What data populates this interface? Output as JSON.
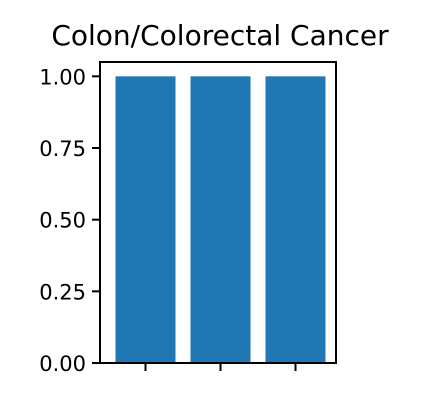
{
  "chart_data": {
    "type": "bar",
    "title": "Colon/Colorectal Cancer",
    "categories": [
      "",
      "",
      ""
    ],
    "values": [
      1.0,
      1.0,
      1.0
    ],
    "xlabel": "",
    "ylabel": "",
    "ylim": [
      0,
      1.05
    ],
    "yticks": [
      "0.00",
      "0.25",
      "0.50",
      "0.75",
      "1.00"
    ],
    "ytick_values": [
      0,
      0.25,
      0.5,
      0.75,
      1.0
    ],
    "grid": false,
    "bar_color": "#1f77b4"
  }
}
